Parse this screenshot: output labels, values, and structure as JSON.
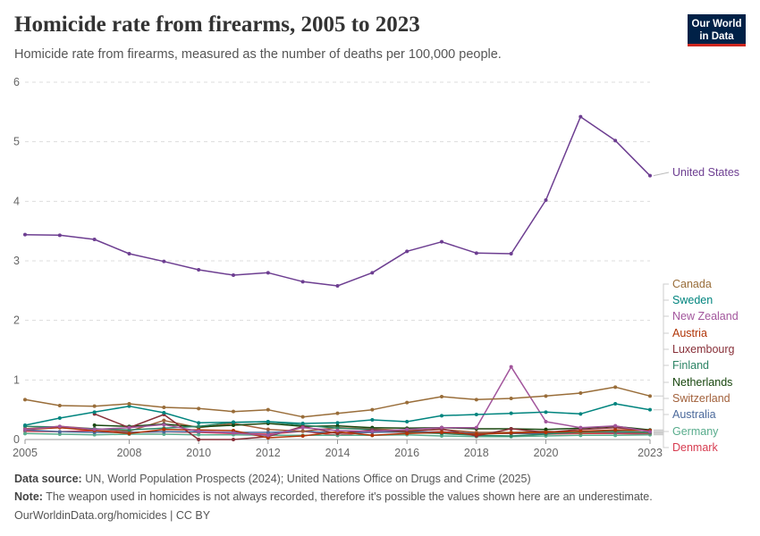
{
  "header": {
    "title": "Homicide rate from firearms, 2005 to 2023",
    "subtitle": "Homicide rate from firearms, measured as the number of deaths per 100,000 people."
  },
  "logo": {
    "line1": "Our World",
    "line2": "in Data",
    "bg": "#002147",
    "accent": "#ce261e"
  },
  "footer": {
    "source_label": "Data source:",
    "source_text": "UN, World Population Prospects (2024); United Nations Office on Drugs and Crime (2025)",
    "note_label": "Note:",
    "note_text": "The weapon used in homicides is not always recorded, therefore it's possible the values shown here are an underestimate.",
    "credit": "OurWorldinData.org/homicides | CC BY"
  },
  "chart_data": {
    "type": "line",
    "xlim": [
      2005,
      2023
    ],
    "ylim": [
      0,
      6
    ],
    "yticks": [
      0,
      1,
      2,
      3,
      4,
      5,
      6
    ],
    "xticks": [
      2005,
      2008,
      2010,
      2012,
      2014,
      2016,
      2018,
      2020,
      2023
    ],
    "grid": "horizontal",
    "legend": "right",
    "series": [
      {
        "name": "United States",
        "color": "#6d3e91",
        "x": [
          2005,
          2006,
          2007,
          2008,
          2009,
          2010,
          2011,
          2012,
          2013,
          2014,
          2015,
          2016,
          2017,
          2018,
          2019,
          2020,
          2021,
          2022,
          2023
        ],
        "values": [
          3.44,
          3.43,
          3.36,
          3.12,
          2.99,
          2.85,
          2.76,
          2.8,
          2.65,
          2.58,
          2.8,
          3.16,
          3.32,
          3.13,
          3.12,
          4.02,
          5.42,
          5.02,
          4.43
        ]
      },
      {
        "name": "Canada",
        "color": "#996d39",
        "x": [
          2005,
          2006,
          2007,
          2008,
          2009,
          2010,
          2011,
          2012,
          2013,
          2014,
          2015,
          2016,
          2017,
          2018,
          2019,
          2020,
          2021,
          2022,
          2023
        ],
        "values": [
          0.67,
          0.57,
          0.56,
          0.6,
          0.54,
          0.52,
          0.47,
          0.5,
          0.38,
          0.44,
          0.5,
          0.62,
          0.72,
          0.67,
          0.69,
          0.73,
          0.78,
          0.88,
          0.73
        ]
      },
      {
        "name": "Sweden",
        "color": "#00847e",
        "x": [
          2005,
          2006,
          2007,
          2008,
          2009,
          2010,
          2011,
          2012,
          2013,
          2014,
          2015,
          2016,
          2017,
          2018,
          2019,
          2020,
          2021,
          2022,
          2023
        ],
        "values": [
          0.24,
          0.36,
          0.46,
          0.56,
          0.45,
          0.28,
          0.29,
          0.3,
          0.27,
          0.28,
          0.33,
          0.3,
          0.4,
          0.42,
          0.44,
          0.46,
          0.43,
          0.6,
          0.5
        ]
      },
      {
        "name": "New Zealand",
        "color": "#a2559c",
        "x": [
          2005,
          2006,
          2007,
          2008,
          2009,
          2010,
          2011,
          2012,
          2013,
          2014,
          2015,
          2016,
          2017,
          2018,
          2019,
          2020,
          2021,
          2022,
          2023
        ],
        "values": [
          0.17,
          0.22,
          0.17,
          0.2,
          0.25,
          0.14,
          0.11,
          0.07,
          0.2,
          0.15,
          0.14,
          0.17,
          0.2,
          0.2,
          1.22,
          0.3,
          0.2,
          0.23,
          0.13
        ]
      },
      {
        "name": "Austria",
        "color": "#b13507",
        "x": [
          2005,
          2006,
          2007,
          2008,
          2009,
          2010,
          2011,
          2012,
          2013,
          2014,
          2015,
          2016,
          2017,
          2018,
          2019,
          2020,
          2021,
          2022,
          2023
        ],
        "values": [
          0.17,
          0.2,
          0.15,
          0.1,
          0.17,
          0.16,
          0.15,
          0.03,
          0.06,
          0.13,
          0.07,
          0.1,
          0.12,
          0.09,
          0.11,
          0.12,
          0.14,
          0.16,
          0.15
        ]
      },
      {
        "name": "Luxembourg",
        "color": "#883039",
        "x": [
          2007,
          2008,
          2009,
          2010,
          2011,
          2012,
          2013,
          2014,
          2015,
          2016,
          2017,
          2018,
          2019,
          2020,
          2021,
          2022,
          2023
        ],
        "values": [
          0.43,
          0.2,
          0.42,
          0.0,
          0.0,
          0.05,
          0.22,
          0.1,
          0.16,
          0.13,
          0.18,
          0.06,
          0.18,
          0.12,
          0.17,
          0.2,
          0.15
        ]
      },
      {
        "name": "Finland",
        "color": "#2c8465",
        "x": [
          2005,
          2006,
          2007,
          2008,
          2009,
          2010,
          2011,
          2012,
          2013,
          2014,
          2015,
          2016,
          2017,
          2018,
          2019,
          2020,
          2021,
          2022,
          2023
        ],
        "values": [
          0.22,
          0.21,
          0.18,
          0.16,
          0.19,
          0.22,
          0.29,
          0.3,
          0.24,
          0.19,
          0.17,
          0.12,
          0.1,
          0.07,
          0.06,
          0.09,
          0.13,
          0.14,
          0.12
        ]
      },
      {
        "name": "Netherlands",
        "color": "#18470f",
        "x": [
          2007,
          2008,
          2009,
          2010,
          2011,
          2012,
          2013,
          2014,
          2015,
          2016,
          2017,
          2018,
          2019,
          2020,
          2021,
          2022,
          2023
        ],
        "values": [
          0.24,
          0.22,
          0.26,
          0.21,
          0.24,
          0.27,
          0.22,
          0.23,
          0.2,
          0.19,
          0.2,
          0.18,
          0.18,
          0.17,
          0.19,
          0.22,
          0.16
        ]
      },
      {
        "name": "Switzerland",
        "color": "#a2613b",
        "x": [
          2005,
          2006,
          2007,
          2008,
          2009,
          2010,
          2011,
          2012,
          2013,
          2014,
          2015,
          2016,
          2017,
          2018,
          2019,
          2020,
          2021,
          2022,
          2023
        ],
        "values": [
          0.18,
          0.22,
          0.18,
          0.14,
          0.32,
          0.2,
          0.27,
          0.17,
          0.14,
          0.2,
          0.18,
          0.15,
          0.17,
          0.12,
          0.12,
          0.14,
          0.11,
          0.13,
          0.11
        ]
      },
      {
        "name": "Australia",
        "color": "#4c6a9c",
        "x": [
          2005,
          2006,
          2007,
          2008,
          2009,
          2010,
          2011,
          2012,
          2013,
          2014,
          2015,
          2016,
          2017,
          2018,
          2019,
          2020,
          2021,
          2022,
          2023
        ],
        "values": [
          0.16,
          0.13,
          0.12,
          0.12,
          0.13,
          0.13,
          0.12,
          0.12,
          0.14,
          0.11,
          0.12,
          0.13,
          0.12,
          0.11,
          0.1,
          0.1,
          0.12,
          0.12,
          0.11
        ]
      },
      {
        "name": "Germany",
        "color": "#58ac8c",
        "x": [
          2005,
          2006,
          2007,
          2008,
          2009,
          2010,
          2011,
          2012,
          2013,
          2014,
          2015,
          2016,
          2017,
          2018,
          2019,
          2020,
          2021,
          2022,
          2023
        ],
        "values": [
          0.1,
          0.09,
          0.08,
          0.09,
          0.09,
          0.08,
          0.08,
          0.07,
          0.07,
          0.07,
          0.07,
          0.08,
          0.06,
          0.05,
          0.05,
          0.06,
          0.07,
          0.07,
          0.08
        ]
      },
      {
        "name": "Denmark",
        "color": "#d73c50",
        "x": [
          2005,
          2006,
          2007,
          2008,
          2009,
          2010,
          2011,
          2012,
          2013,
          2014,
          2015,
          2016,
          2017,
          2018,
          2019,
          2020,
          2021,
          2022,
          2023
        ],
        "values": [
          0.14,
          0.13,
          0.15,
          0.12,
          0.13,
          0.12,
          0.1,
          0.09,
          0.14,
          0.07,
          0.13,
          0.12,
          0.13,
          0.1,
          0.11,
          0.09,
          0.1,
          0.1,
          0.09
        ]
      }
    ]
  }
}
